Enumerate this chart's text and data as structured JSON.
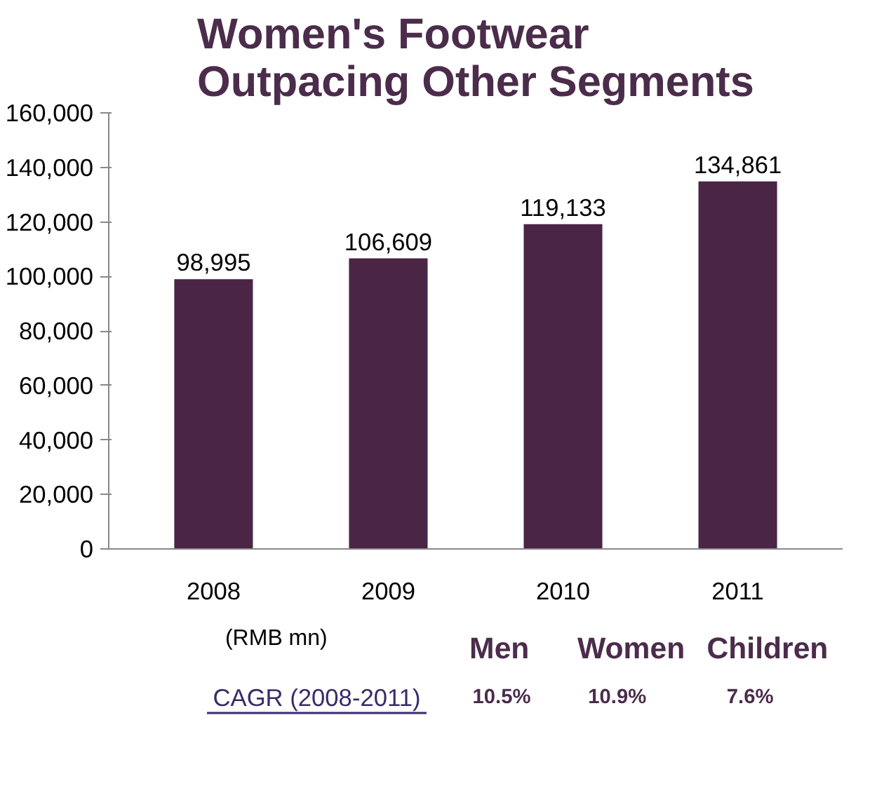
{
  "chart_data": {
    "type": "bar",
    "title": "Women's Footwear\nOutpacing Other Segments",
    "categories": [
      "2008",
      "2009",
      "2010",
      "2011"
    ],
    "values": [
      98995,
      106609,
      119133,
      134861
    ],
    "value_labels": [
      "98,995",
      "106,609",
      "119,133",
      "134,861"
    ],
    "color": "#4a2545",
    "ylim": [
      0,
      160000
    ],
    "yticks": [
      0,
      {
        "value": 20000,
        "label": "20,000"
      },
      {
        "value": 40000,
        "label": "40,000"
      },
      {
        "value": 60000,
        "label": "60,000"
      },
      {
        "value": 80000,
        "label": "80,000"
      },
      {
        "value": 100000,
        "label": "100,000"
      },
      {
        "value": 120000,
        "label": "120,000"
      },
      {
        "value": 140000,
        "label": "140,000"
      },
      {
        "value": 160000,
        "label": "160,000"
      }
    ],
    "grid": false,
    "annotations": [
      "(RMB mn)",
      "Men",
      "Women",
      "Children",
      "CAGR (2008-2011)",
      "10.5%",
      "10.9%",
      "7.6%"
    ]
  }
}
